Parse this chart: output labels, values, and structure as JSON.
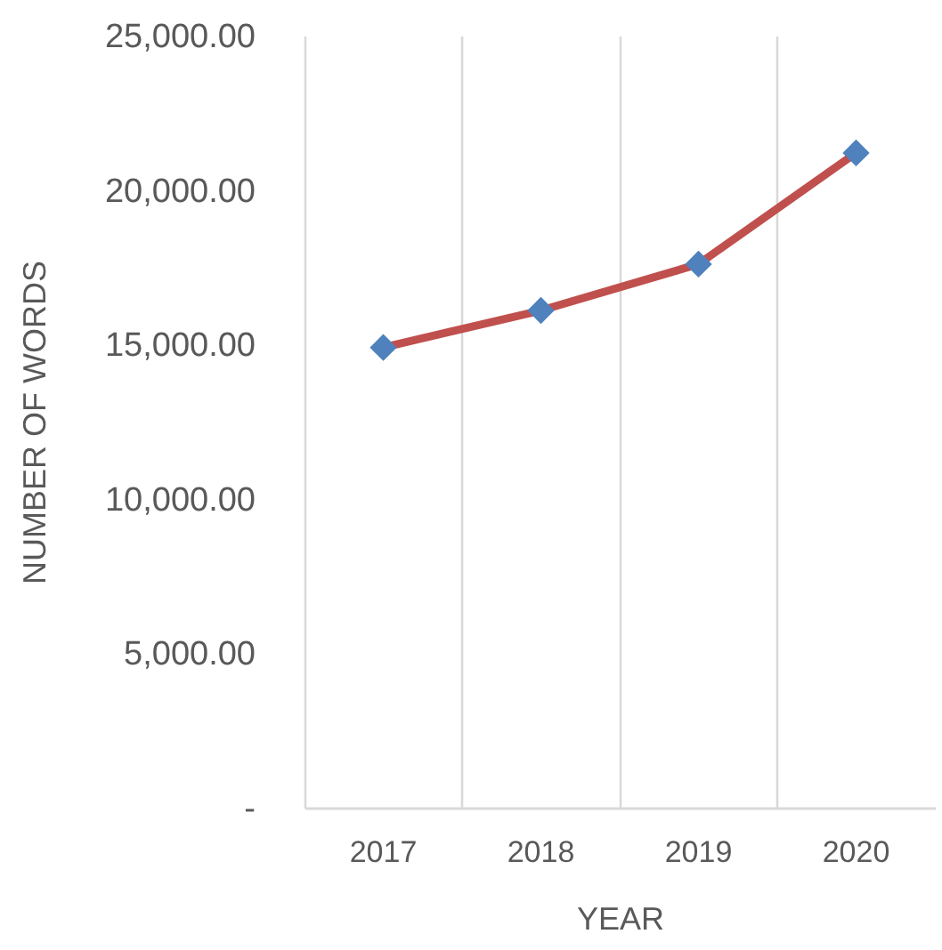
{
  "chart_data": {
    "type": "line",
    "xlabel": "YEAR",
    "ylabel": "NUMBER OF WORDS",
    "categories": [
      "2017",
      "2018",
      "2019",
      "2020"
    ],
    "series": [
      {
        "color": "#c0504d",
        "colors": [
          "#4f81bd",
          "#4f81bd",
          "#4f81bd",
          "#4f81bd"
        ],
        "values": [
          14900,
          16100,
          17600,
          21200
        ]
      }
    ],
    "ylim": [
      0,
      25000
    ],
    "yticks": [
      {
        "value": 0,
        "label": "-"
      },
      {
        "value": 5000,
        "label": "5,000.00"
      },
      {
        "value": 10000,
        "label": "10,000.00"
      },
      {
        "value": 15000,
        "label": "15,000.00"
      },
      {
        "value": 20000,
        "label": "20,000.00"
      },
      {
        "value": 25000,
        "label": "25,000.00"
      }
    ],
    "grid": "x",
    "marker": "diamond",
    "line_style": "solid"
  }
}
